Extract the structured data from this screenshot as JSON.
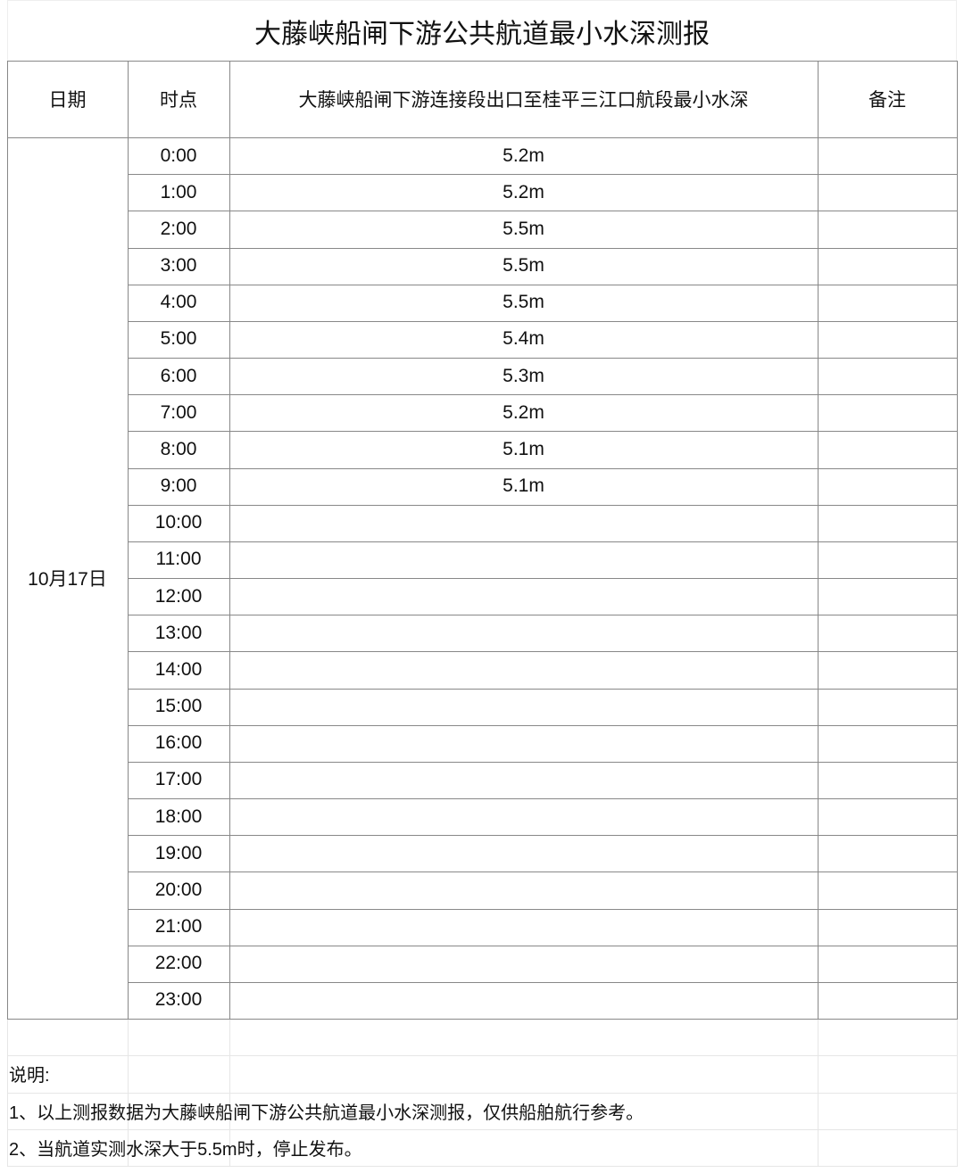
{
  "title": "大藤峡船闸下游公共航道最小水深测报",
  "headers": {
    "date": "日期",
    "time": "时点",
    "depth": "大藤峡船闸下游连接段出口至桂平三江口航段最小水深",
    "remark": "备注"
  },
  "date": "10月17日",
  "rows": [
    {
      "time": "0:00",
      "depth": "5.2m",
      "remark": ""
    },
    {
      "time": "1:00",
      "depth": "5.2m",
      "remark": ""
    },
    {
      "time": "2:00",
      "depth": "5.5m",
      "remark": ""
    },
    {
      "time": "3:00",
      "depth": "5.5m",
      "remark": ""
    },
    {
      "time": "4:00",
      "depth": "5.5m",
      "remark": ""
    },
    {
      "time": "5:00",
      "depth": "5.4m",
      "remark": ""
    },
    {
      "time": "6:00",
      "depth": "5.3m",
      "remark": ""
    },
    {
      "time": "7:00",
      "depth": "5.2m",
      "remark": ""
    },
    {
      "time": "8:00",
      "depth": "5.1m",
      "remark": ""
    },
    {
      "time": "9:00",
      "depth": "5.1m",
      "remark": ""
    },
    {
      "time": "10:00",
      "depth": "",
      "remark": ""
    },
    {
      "time": "11:00",
      "depth": "",
      "remark": ""
    },
    {
      "time": "12:00",
      "depth": "",
      "remark": ""
    },
    {
      "time": "13:00",
      "depth": "",
      "remark": ""
    },
    {
      "time": "14:00",
      "depth": "",
      "remark": ""
    },
    {
      "time": "15:00",
      "depth": "",
      "remark": ""
    },
    {
      "time": "16:00",
      "depth": "",
      "remark": ""
    },
    {
      "time": "17:00",
      "depth": "",
      "remark": ""
    },
    {
      "time": "18:00",
      "depth": "",
      "remark": ""
    },
    {
      "time": "19:00",
      "depth": "",
      "remark": ""
    },
    {
      "time": "20:00",
      "depth": "",
      "remark": ""
    },
    {
      "time": "21:00",
      "depth": "",
      "remark": ""
    },
    {
      "time": "22:00",
      "depth": "",
      "remark": ""
    },
    {
      "time": "23:00",
      "depth": "",
      "remark": ""
    }
  ],
  "notes": {
    "heading": "说明:",
    "items": [
      "1、以上测报数据为大藤峡船闸下游公共航道最小水深测报，仅供船舶航行参考。",
      "2、当航道实测水深大于5.5m时，停止发布。"
    ]
  }
}
